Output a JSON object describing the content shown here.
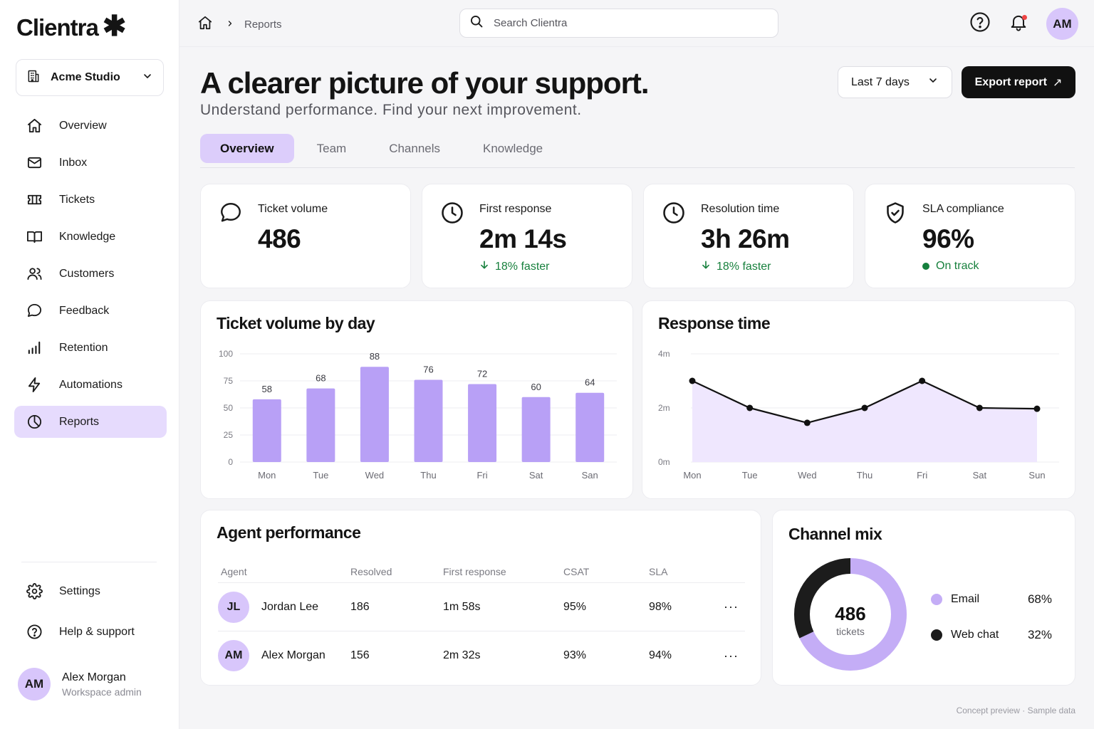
{
  "app": {
    "name": "Clientra",
    "logo_mark": "✱"
  },
  "workspace": {
    "name": "Acme Studio",
    "icon": "building-icon"
  },
  "nav": {
    "items": [
      {
        "label": "Overview",
        "icon": "home-icon"
      },
      {
        "label": "Inbox",
        "icon": "mail-icon"
      },
      {
        "label": "Tickets",
        "icon": "ticket-icon"
      },
      {
        "label": "Knowledge",
        "icon": "book-icon"
      },
      {
        "label": "Customers",
        "icon": "users-icon"
      },
      {
        "label": "Feedback",
        "icon": "message-icon"
      },
      {
        "label": "Retention",
        "icon": "bar-chart-icon"
      },
      {
        "label": "Automations",
        "icon": "bolt-icon"
      },
      {
        "label": "Reports",
        "icon": "pie-chart-icon",
        "active": true
      }
    ],
    "bottom": [
      {
        "label": "Settings",
        "icon": "gear-icon"
      },
      {
        "label": "Help & support",
        "icon": "help-icon"
      }
    ]
  },
  "user": {
    "initials": "AM",
    "name": "Alex Morgan",
    "role": "Workspace admin"
  },
  "breadcrumb": {
    "current": "Reports"
  },
  "search": {
    "placeholder": "Search Clientra"
  },
  "header": {
    "title": "A clearer picture of your support.",
    "subtitle": "Understand performance. Find your next improvement.",
    "range": "Last 7 days",
    "export_label": "Export report",
    "export_arrow": "↗"
  },
  "tabs": [
    {
      "label": "Overview",
      "active": true
    },
    {
      "label": "Team"
    },
    {
      "label": "Channels"
    },
    {
      "label": "Knowledge"
    }
  ],
  "kpis": [
    {
      "label": "Ticket volume",
      "value": "486",
      "delta": "",
      "icon": "chat-bubble-icon"
    },
    {
      "label": "First response",
      "value": "2m 14s",
      "delta": "18% faster",
      "icon": "clock-icon"
    },
    {
      "label": "Resolution time",
      "value": "3h 26m",
      "delta": "18% faster",
      "icon": "clock-icon"
    },
    {
      "label": "SLA compliance",
      "value": "96%",
      "delta": "On track",
      "icon": "shield-check-icon"
    }
  ],
  "colors": {
    "accent": "#b39bf5",
    "accent_light": "#e6dbfd",
    "dark": "#111111",
    "success": "#15803d"
  },
  "chart_data": [
    {
      "type": "bar",
      "title": "Ticket volume by day",
      "categories": [
        "Mon",
        "Tue",
        "Wed",
        "Thu",
        "Fri",
        "Sat",
        "San"
      ],
      "values": [
        58,
        68,
        88,
        76,
        72,
        60,
        64
      ],
      "yticks": [
        "100",
        "75",
        "50",
        "25",
        "0"
      ],
      "ylim": [
        0,
        100
      ],
      "grid": true
    },
    {
      "type": "area",
      "title": "Response time",
      "categories": [
        "Mon",
        "Tue",
        "Wed",
        "Thu",
        "Fri",
        "Sat",
        "Sun"
      ],
      "values": [
        3.0,
        2.0,
        1.45,
        2.0,
        3.0,
        2.0,
        1.97
      ],
      "yticks": [
        "4m",
        "2m",
        "0m"
      ],
      "ylim": [
        0,
        4
      ],
      "grid": true
    },
    {
      "type": "pie",
      "title": "Channel mix",
      "center_value": "486",
      "center_label": "tickets",
      "slices": [
        {
          "name": "Email",
          "value": 68,
          "label": "68%",
          "color": "#c4adf6"
        },
        {
          "name": "Web chat",
          "value": 32,
          "label": "32%",
          "color": "#1c1c1c"
        }
      ]
    }
  ],
  "agents": {
    "title": "Agent performance",
    "columns": [
      "Agent",
      "Resolved",
      "First response",
      "CSAT",
      "SLA"
    ],
    "rows": [
      {
        "initials": "JL",
        "name": "Jordan Lee",
        "resolved": "186",
        "first_response": "1m 58s",
        "csat": "95%",
        "sla": "98%"
      },
      {
        "initials": "AM",
        "name": "Alex Morgan",
        "resolved": "156",
        "first_response": "2m 32s",
        "csat": "93%",
        "sla": "94%"
      }
    ],
    "more": "···"
  },
  "footer": "Concept preview · Sample data"
}
